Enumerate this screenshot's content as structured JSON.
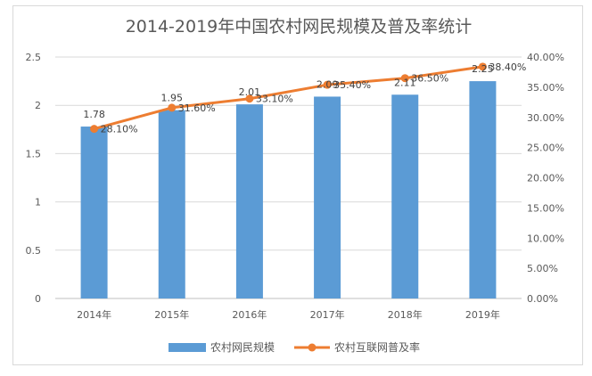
{
  "chart_data": {
    "type": "bar",
    "title": "2014-2019年中国农村网民规模及普及率统计",
    "categories": [
      "2014年",
      "2015年",
      "2016年",
      "2017年",
      "2018年",
      "2019年"
    ],
    "series": [
      {
        "name": "农村网民规模",
        "type": "bar",
        "axis": "left",
        "values": [
          1.78,
          1.95,
          2.01,
          2.09,
          2.11,
          2.25
        ],
        "data_labels": [
          "1.78",
          "1.95",
          "2.01",
          "2.09",
          "2.11",
          "2.25"
        ],
        "color": "#5b9bd5"
      },
      {
        "name": "农村互联网普及率",
        "type": "line",
        "axis": "right",
        "values": [
          28.1,
          31.6,
          33.1,
          35.4,
          36.5,
          38.4
        ],
        "data_labels": [
          "28.10%",
          "31.60%",
          "33.10%",
          "35.40%",
          "36.50%",
          "38.40%"
        ],
        "color": "#ed7d31"
      }
    ],
    "y_left": {
      "range": [
        0,
        2.5
      ],
      "ticks": [
        0,
        0.5,
        1,
        1.5,
        2,
        2.5
      ],
      "tick_labels": [
        "0",
        "0.5",
        "1",
        "1.5",
        "2",
        "2.5"
      ]
    },
    "y_right": {
      "range": [
        0,
        40
      ],
      "ticks": [
        0,
        5,
        10,
        15,
        20,
        25,
        30,
        35,
        40
      ],
      "tick_labels": [
        "0.00%",
        "5.00%",
        "10.00%",
        "15.00%",
        "20.00%",
        "25.00%",
        "30.00%",
        "35.00%",
        "40.00%"
      ]
    },
    "grid": true,
    "legend_position": "bottom"
  }
}
